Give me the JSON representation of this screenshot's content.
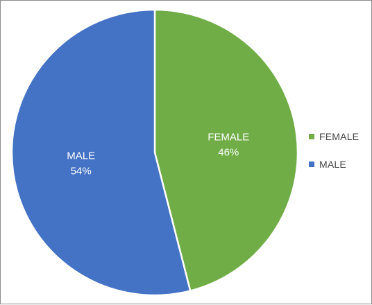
{
  "chart_data": {
    "type": "pie",
    "slices": [
      {
        "label": "FEMALE",
        "value": 46,
        "percent_label": "46%",
        "color": "#70ad47"
      },
      {
        "label": "MALE",
        "value": 54,
        "percent_label": "54%",
        "color": "#4472c4"
      }
    ],
    "legend": {
      "position": "right",
      "entries": [
        "FEMALE",
        "MALE"
      ]
    },
    "start_angle": "12 o'clock",
    "direction": "clockwise"
  }
}
